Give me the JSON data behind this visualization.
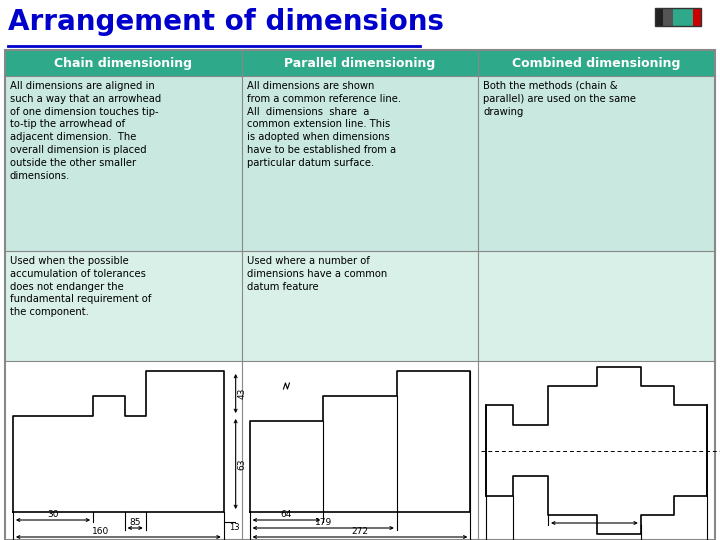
{
  "title": "Arrangement of dimensions",
  "title_color": "#0000CC",
  "title_fontsize": 20,
  "background_color": "#FFFFFF",
  "header_bg": "#2EAA8A",
  "header_text_color": "#FFFFFF",
  "cell_bg": "#C8E8E0",
  "cell_bg_alt": "#D8F0E8",
  "border_color": "#888888",
  "headers": [
    "Chain dimensioning",
    "Parallel dimensioning",
    "Combined dimensioning"
  ],
  "row1": [
    "All dimensions are aligned in\nsuch a way that an arrowhead\nof one dimension touches tip-\nto-tip the arrowhead of\nadjacent dimension.  The\noverall dimension is placed\noutside the other smaller\ndimensions.",
    "All dimensions are shown\nfrom a common reference line.\nAll  dimensions  share  a\ncommon extension line. This\nis adopted when dimensions\nhave to be established from a\nparticular datum surface.",
    "Both the methods (chain &\nparallel) are used on the same\ndrawing"
  ],
  "row2": [
    "Used when the possible\naccumulation of tolerances\ndoes not endanger the\nfundamental requirement of\nthe component.",
    "Used where a number of\ndimensions have a common\ndatum feature",
    ""
  ],
  "nav_colors": [
    "#222222",
    "#555555",
    "#2EAA8A",
    "#2EAA8A",
    "#CC0000"
  ],
  "nav_widths": [
    8,
    10,
    10,
    10,
    8
  ]
}
